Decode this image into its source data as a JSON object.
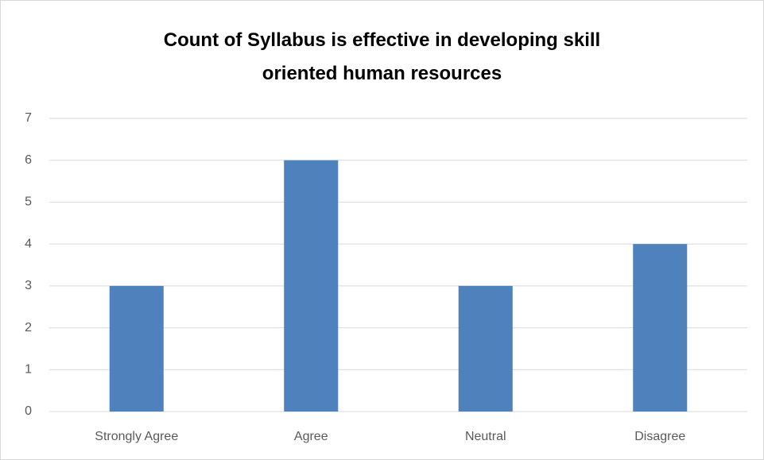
{
  "chart_data": {
    "type": "bar",
    "title": "Count of Syllabus is effective in developing skill oriented human resources",
    "categories": [
      "Strongly Agree",
      "Agree",
      "Neutral",
      "Disagree"
    ],
    "values": [
      3,
      6,
      3,
      4
    ],
    "color": "#4f81bd",
    "ylim": [
      0,
      7
    ],
    "yticks": [
      0,
      1,
      2,
      3,
      4,
      5,
      6,
      7
    ],
    "grid": true
  }
}
